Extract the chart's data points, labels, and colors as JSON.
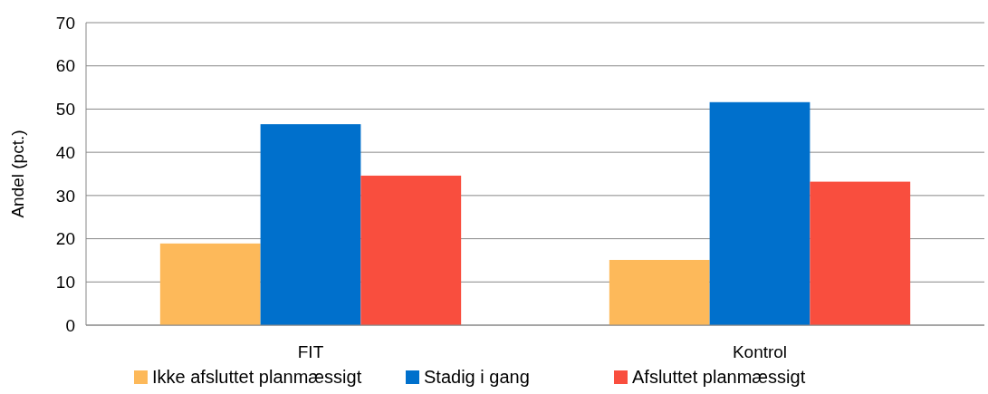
{
  "chart_data": {
    "type": "bar",
    "ylabel": "Andel (pct.)",
    "categories": [
      "FIT",
      "Kontrol"
    ],
    "series": [
      {
        "name": "Ikke afsluttet planmæssigt",
        "color": "#fdb95a",
        "values": [
          18.9,
          15.1
        ]
      },
      {
        "name": "Stadig i gang",
        "color": "#0070cc",
        "values": [
          46.5,
          51.6
        ]
      },
      {
        "name": "Afsluttet planmæssigt",
        "color": "#f94e3e",
        "values": [
          34.6,
          33.2
        ]
      }
    ],
    "ylim": [
      0,
      70
    ],
    "yticks": [
      0,
      10,
      20,
      30,
      40,
      50,
      60,
      70
    ],
    "grid": "y",
    "legend": "bottom"
  }
}
